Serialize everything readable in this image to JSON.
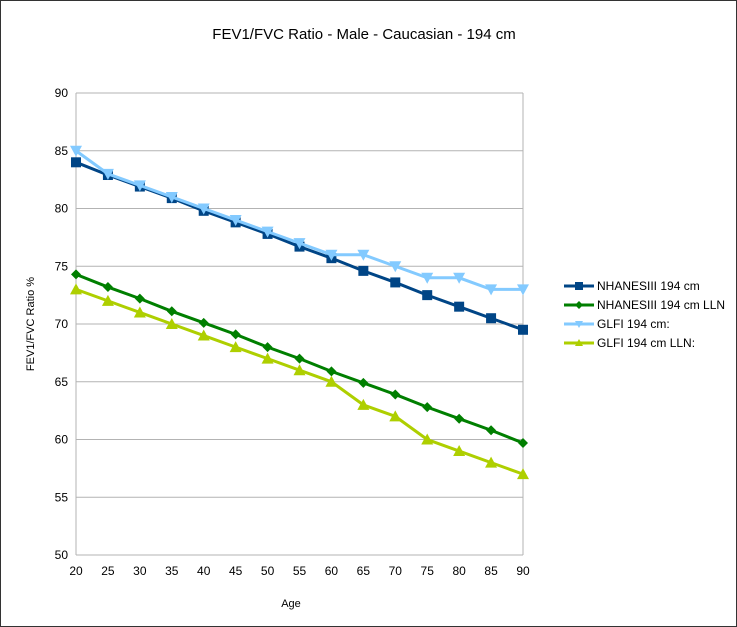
{
  "chart_data": {
    "type": "line",
    "title": "FEV1/FVC Ratio - Male - Caucasian - 194 cm",
    "xlabel": "Age",
    "ylabel": "FEV1/FVC Ratio %",
    "x": [
      20,
      25,
      30,
      35,
      40,
      45,
      50,
      55,
      60,
      65,
      70,
      75,
      80,
      85,
      90
    ],
    "xticks": [
      "20",
      "25",
      "30",
      "35",
      "40",
      "45",
      "50",
      "55",
      "60",
      "65",
      "70",
      "75",
      "80",
      "85",
      "90"
    ],
    "yticks": [
      "50",
      "55",
      "60",
      "65",
      "70",
      "75",
      "80",
      "85",
      "90"
    ],
    "ylim": [
      50,
      90
    ],
    "grid": "horizontal",
    "legend_position": "right",
    "series": [
      {
        "name": "NHANESIII 194 cm",
        "color": "#004586",
        "marker": "square",
        "values": [
          84.0,
          82.9,
          81.9,
          80.9,
          79.8,
          78.8,
          77.8,
          76.7,
          75.7,
          74.6,
          73.6,
          72.5,
          71.5,
          70.5,
          69.5
        ]
      },
      {
        "name": "NHANESIII 194 cm LLN",
        "color": "#007F00",
        "marker": "diamond",
        "values": [
          74.3,
          73.2,
          72.2,
          71.1,
          70.1,
          69.1,
          68.0,
          67.0,
          65.9,
          64.9,
          63.9,
          62.8,
          61.8,
          60.8,
          59.7
        ]
      },
      {
        "name": "GLFI 194 cm:",
        "color": "#83CAFF",
        "marker": "triangle-down",
        "values": [
          85,
          83,
          82,
          81,
          80,
          79,
          78,
          77,
          76,
          76,
          75,
          74,
          74,
          73,
          73
        ]
      },
      {
        "name": "GLFI 194 cm LLN:",
        "color": "#AECF00",
        "marker": "triangle-up",
        "values": [
          73,
          72,
          71,
          70,
          69,
          68,
          67,
          66,
          65,
          63,
          62,
          60,
          59,
          58,
          57
        ]
      }
    ]
  }
}
